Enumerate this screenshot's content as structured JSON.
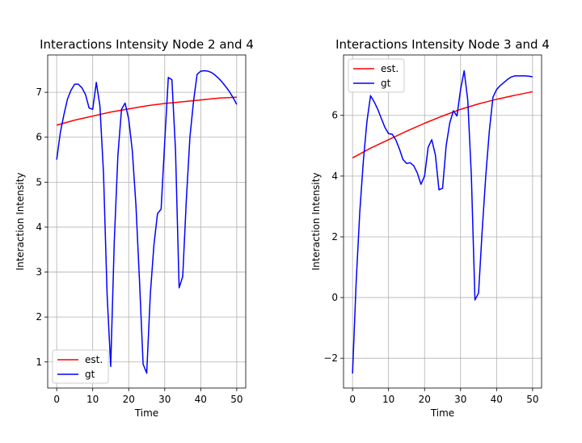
{
  "chart_data": [
    {
      "type": "line",
      "title": "Interactions Intensity Node 2 and 4",
      "xlabel": "Time",
      "ylabel": "Interaction Intensity",
      "xlim": [
        -2.5,
        52.5
      ],
      "ylim": [
        0.42,
        7.83
      ],
      "xticks": [
        0,
        10,
        20,
        30,
        40,
        50
      ],
      "yticks": [
        1,
        2,
        3,
        4,
        5,
        6,
        7
      ],
      "grid": true,
      "legend": "lower left",
      "series": [
        {
          "name": "est.",
          "color": "#ff0000",
          "x": [
            0,
            5,
            10,
            15,
            20,
            25,
            30,
            35,
            40,
            45,
            50
          ],
          "y": [
            6.27,
            6.38,
            6.47,
            6.56,
            6.63,
            6.7,
            6.75,
            6.79,
            6.83,
            6.87,
            6.89
          ]
        },
        {
          "name": "gt",
          "color": "#0000ff",
          "x": [
            0,
            1,
            2,
            3,
            4,
            5,
            6,
            7,
            8,
            9,
            10,
            11,
            12,
            13,
            14,
            15,
            16,
            17,
            18,
            19,
            20,
            21,
            22,
            23,
            24,
            25,
            26,
            27,
            28,
            29,
            30,
            31,
            32,
            33,
            34,
            35,
            36,
            37,
            38,
            39,
            40,
            41,
            42,
            43,
            44,
            45,
            46,
            47,
            48,
            49,
            50
          ],
          "y": [
            5.5,
            6.1,
            6.5,
            6.85,
            7.05,
            7.18,
            7.18,
            7.1,
            6.95,
            6.65,
            6.62,
            7.22,
            6.7,
            5.2,
            2.5,
            0.9,
            3.7,
            5.6,
            6.62,
            6.76,
            6.4,
            5.7,
            4.5,
            2.8,
            0.95,
            0.75,
            2.5,
            3.6,
            4.3,
            4.4,
            5.9,
            7.33,
            7.28,
            5.7,
            2.65,
            2.9,
            4.6,
            6.0,
            6.8,
            7.4,
            7.47,
            7.48,
            7.47,
            7.44,
            7.38,
            7.31,
            7.22,
            7.12,
            7.01,
            6.88,
            6.73
          ]
        }
      ]
    },
    {
      "type": "line",
      "title": "Interactions Intensity Node 3 and 4",
      "xlabel": "Time",
      "ylabel": "Interaction Intensity",
      "xlim": [
        -2.5,
        52.5
      ],
      "ylim": [
        -2.98,
        7.99
      ],
      "xticks": [
        0,
        10,
        20,
        30,
        40,
        50
      ],
      "yticks": [
        -2,
        0,
        2,
        4,
        6
      ],
      "grid": true,
      "legend": "upper left",
      "series": [
        {
          "name": "est.",
          "color": "#ff0000",
          "x": [
            0,
            5,
            10,
            15,
            20,
            25,
            30,
            35,
            40,
            45,
            50
          ],
          "y": [
            4.6,
            4.92,
            5.2,
            5.48,
            5.74,
            5.98,
            6.2,
            6.38,
            6.53,
            6.66,
            6.78
          ]
        },
        {
          "name": "gt",
          "color": "#0000ff",
          "x": [
            0,
            1,
            2,
            3,
            4,
            5,
            6,
            7,
            8,
            9,
            10,
            11,
            12,
            13,
            14,
            15,
            16,
            17,
            18,
            19,
            20,
            21,
            22,
            23,
            24,
            25,
            26,
            27,
            28,
            29,
            30,
            31,
            32,
            33,
            34,
            35,
            36,
            37,
            38,
            39,
            40,
            41,
            42,
            43,
            44,
            45,
            46,
            47,
            48,
            49,
            50
          ],
          "y": [
            -2.5,
            0.5,
            2.8,
            4.5,
            5.8,
            6.65,
            6.45,
            6.2,
            5.9,
            5.6,
            5.4,
            5.38,
            5.2,
            4.9,
            4.55,
            4.42,
            4.44,
            4.34,
            4.1,
            3.73,
            4.0,
            4.95,
            5.2,
            4.7,
            3.55,
            3.6,
            5.0,
            5.75,
            6.15,
            5.98,
            6.85,
            7.47,
            6.5,
            4.0,
            -0.08,
            0.15,
            2.2,
            4.0,
            5.5,
            6.6,
            6.85,
            6.98,
            7.08,
            7.18,
            7.26,
            7.3,
            7.3,
            7.3,
            7.3,
            7.29,
            7.27
          ]
        }
      ]
    }
  ]
}
